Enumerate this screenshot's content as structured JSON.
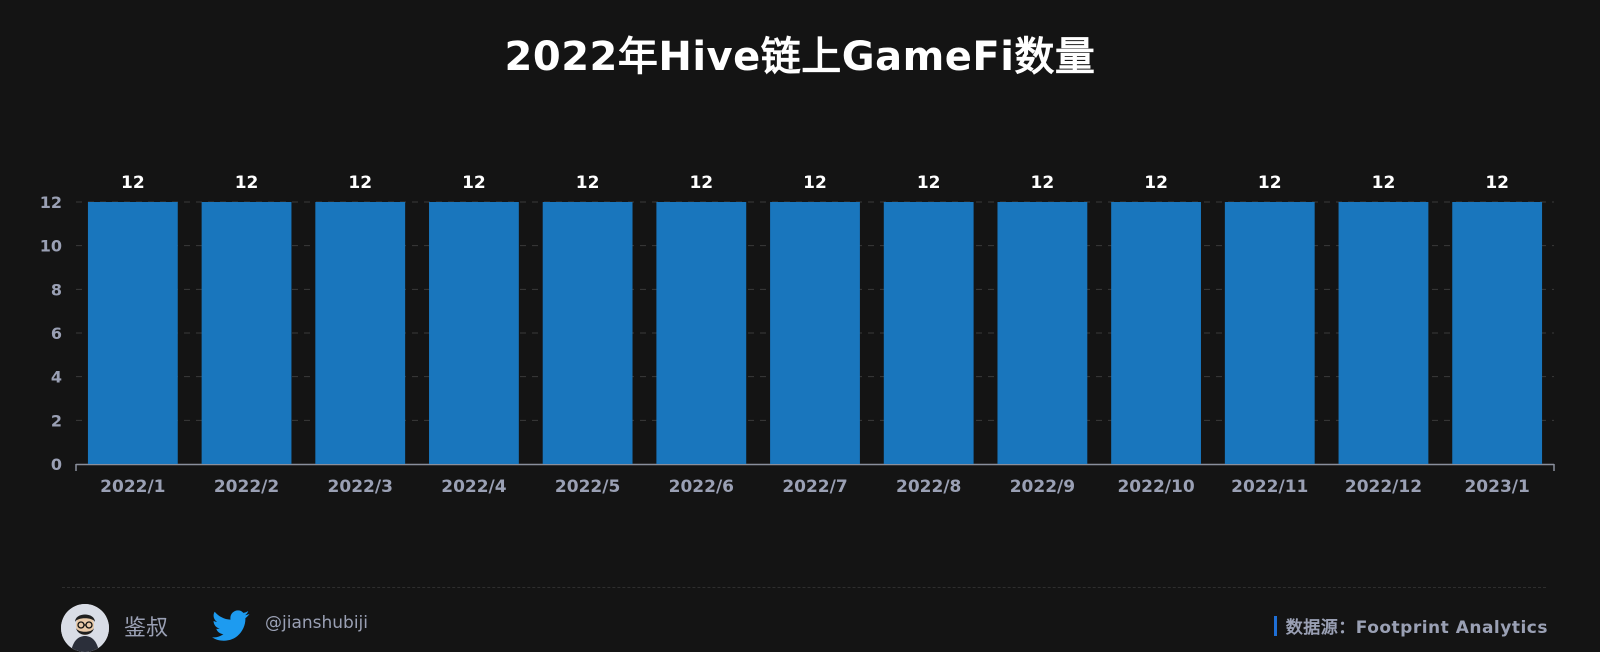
{
  "chart_data": {
    "type": "bar",
    "title": "2022年Hive链上GameFi数量",
    "categories": [
      "2022/1",
      "2022/2",
      "2022/3",
      "2022/4",
      "2022/5",
      "2022/6",
      "2022/7",
      "2022/8",
      "2022/9",
      "2022/10",
      "2022/11",
      "2022/12",
      "2023/1"
    ],
    "values": [
      12,
      12,
      12,
      12,
      12,
      12,
      12,
      12,
      12,
      12,
      12,
      12,
      12
    ],
    "xlabel": "",
    "ylabel": "",
    "ylim": [
      0,
      12
    ],
    "yticks": [
      0,
      2,
      4,
      6,
      8,
      10,
      12
    ],
    "grid": true,
    "bar_color": "#1976bd",
    "data_labels": true
  },
  "footer": {
    "author": "鉴叔",
    "handle": "@jianshubiji",
    "source": "数据源：Footprint  Analytics",
    "avatar_icon": "avatar-icon",
    "social_icon": "twitter-icon",
    "accent_color": "#1f6fd6"
  }
}
